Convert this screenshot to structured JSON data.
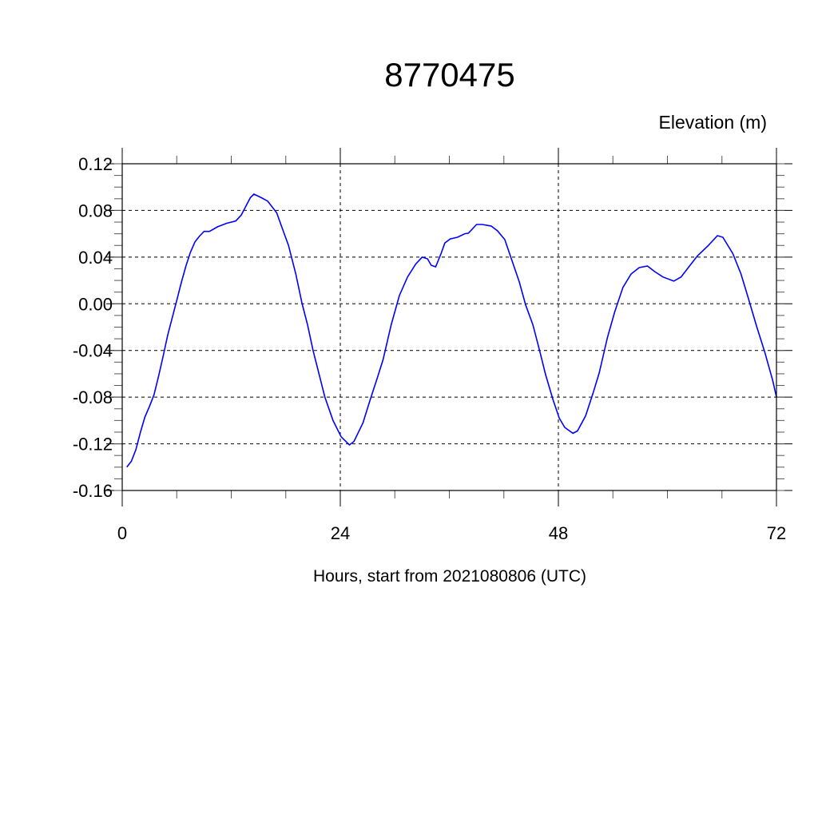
{
  "chart_data": {
    "type": "line",
    "title": "8770475",
    "ylabel": "Elevation (m)",
    "xlabel": "Hours, start from 2021080806 (UTC)",
    "xlim": [
      0,
      72
    ],
    "ylim": [
      -0.16,
      0.12
    ],
    "xticks": [
      0,
      24,
      48,
      72
    ],
    "xtick_labels": [
      "0",
      "24",
      "48",
      "72"
    ],
    "xminor_step": 6,
    "yticks": [
      -0.16,
      -0.12,
      -0.08,
      -0.04,
      0.0,
      0.04,
      0.08,
      0.12
    ],
    "ytick_labels": [
      "-0.16",
      "-0.12",
      "-0.08",
      "-0.04",
      "0.00",
      "0.04",
      "0.08",
      "0.12"
    ],
    "yminor_step": 0.01,
    "grid": true,
    "line_color": "#0000ff",
    "series": [
      {
        "x": [
          0.5,
          1,
          1.5,
          2,
          2.5,
          3,
          3.5,
          4,
          4.5,
          5,
          5.5,
          6,
          6.5,
          7,
          7.5,
          8,
          8.5,
          9,
          9.6,
          10.5,
          11.5,
          12.5,
          13.1,
          14.1,
          14.5,
          15.3,
          16,
          17,
          17.5,
          18.3,
          19.1,
          19.8,
          20.4,
          21,
          22.3,
          23.2,
          24.1,
          25,
          25.5,
          26.5,
          27.3,
          28.1,
          28.7,
          29.6,
          30.5,
          31.4,
          32.3,
          33,
          33.6,
          34,
          34.5,
          35.1,
          35.5,
          36.1,
          36.9,
          37.7,
          38.1,
          39,
          39.6,
          40.6,
          41.3,
          42.1,
          42.8,
          43.7,
          44.4,
          45.2,
          45.9,
          46.6,
          47.4,
          48.1,
          48.7,
          49.6,
          50.1,
          51,
          51.8,
          52.5,
          53.4,
          54.2,
          55.1,
          56,
          56.9,
          57.8,
          58.6,
          59.5,
          60.7,
          61.5,
          62.4,
          63.3,
          64.5,
          65.5,
          66.1,
          67.2,
          68.1,
          68.9,
          69.8,
          70.7,
          71.6,
          72
        ],
        "y": [
          -0.14,
          -0.135,
          -0.125,
          -0.11,
          -0.097,
          -0.088,
          -0.078,
          -0.062,
          -0.045,
          -0.027,
          -0.012,
          0.003,
          0.018,
          0.032,
          0.044,
          0.053,
          0.058,
          0.062,
          0.062,
          0.066,
          0.069,
          0.071,
          0.076,
          0.091,
          0.094,
          0.091,
          0.088,
          0.078,
          0.067,
          0.05,
          0.0255,
          0.0,
          -0.018,
          -0.04,
          -0.08,
          -0.1,
          -0.114,
          -0.121,
          -0.118,
          -0.102,
          -0.082,
          -0.063,
          -0.048,
          -0.018,
          0.007,
          0.023,
          0.034,
          0.04,
          0.0385,
          0.033,
          0.0317,
          0.0433,
          0.052,
          0.0556,
          0.057,
          0.06,
          0.0605,
          0.068,
          0.068,
          0.0667,
          0.0625,
          0.055,
          0.039,
          0.0187,
          -0.001,
          -0.018,
          -0.039,
          -0.061,
          -0.082,
          -0.098,
          -0.106,
          -0.111,
          -0.109,
          -0.096,
          -0.077,
          -0.059,
          -0.029,
          -0.007,
          0.014,
          0.0255,
          0.031,
          0.0324,
          0.0276,
          0.023,
          0.0194,
          0.023,
          0.032,
          0.041,
          0.05,
          0.0584,
          0.057,
          0.043,
          0.0255,
          0.005,
          -0.019,
          -0.041,
          -0.066,
          -0.08
        ]
      }
    ]
  }
}
